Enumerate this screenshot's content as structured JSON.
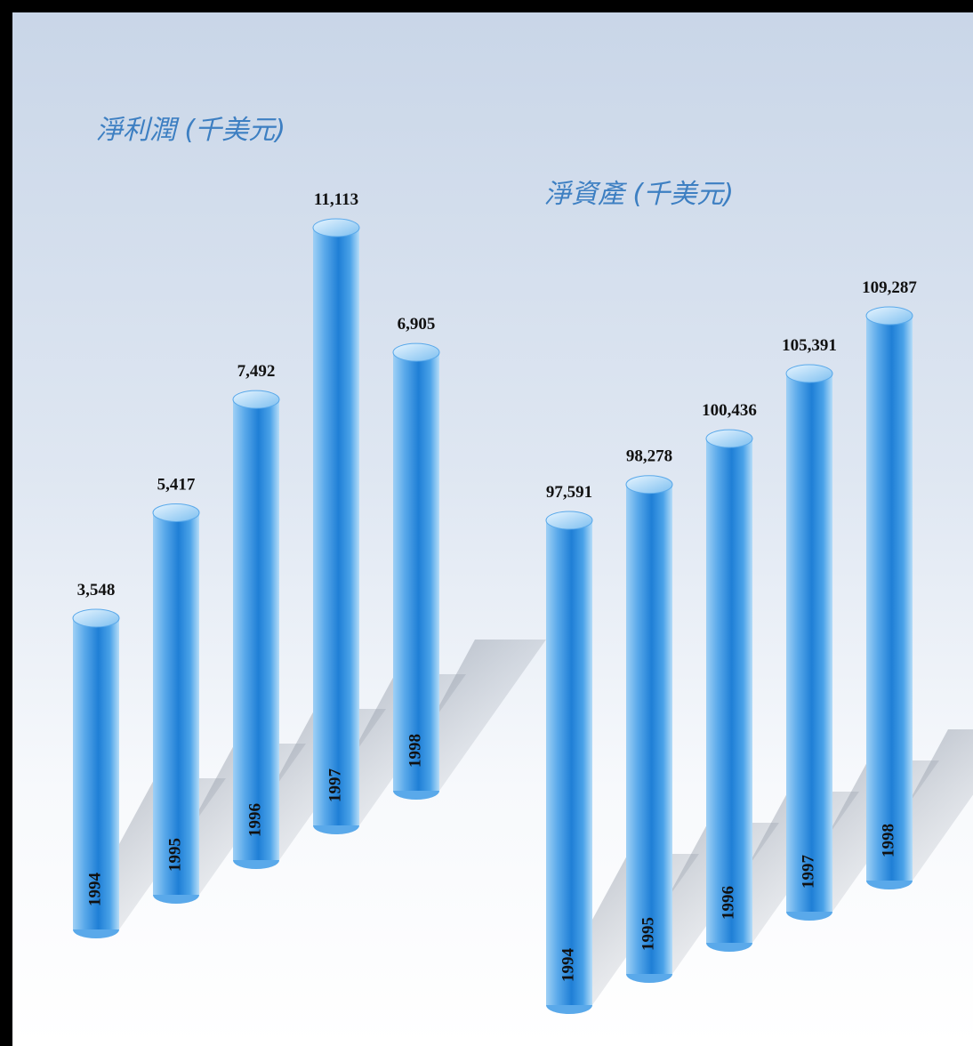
{
  "chart_data": [
    {
      "type": "bar",
      "title": "淨利潤 (千美元)",
      "categories": [
        "1994",
        "1995",
        "1996",
        "1997",
        "1998"
      ],
      "values": [
        3548,
        5417,
        7492,
        11113,
        6905
      ],
      "value_labels": [
        "3,548",
        "5,417",
        "7,492",
        "11,113",
        "6,905"
      ],
      "color": "#3b8fd8"
    },
    {
      "type": "bar",
      "title": "淨資產 (千美元)",
      "categories": [
        "1994",
        "1995",
        "1996",
        "1997",
        "1998"
      ],
      "values": [
        97591,
        98278,
        100436,
        105391,
        109287
      ],
      "value_labels": [
        "97,591",
        "98,278",
        "100,436",
        "105,391",
        "109,287"
      ],
      "color": "#3b8fd8"
    }
  ]
}
